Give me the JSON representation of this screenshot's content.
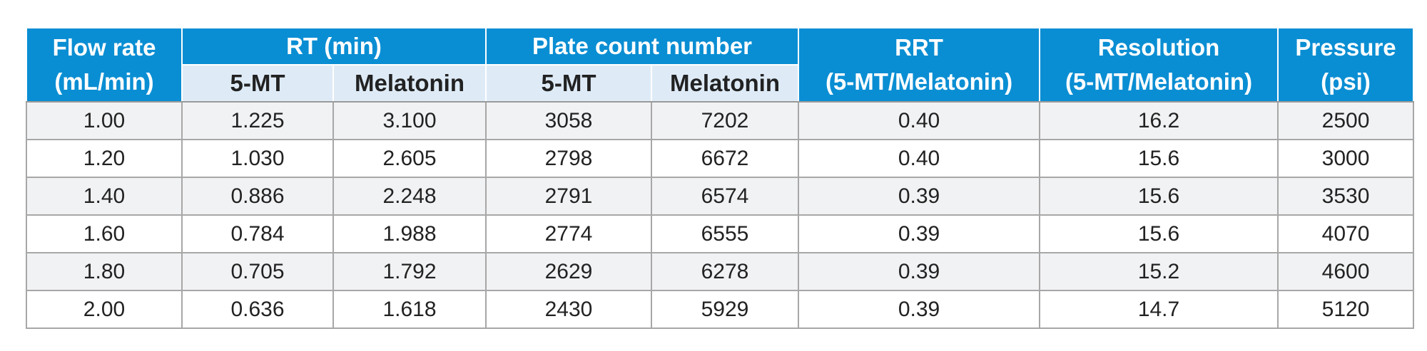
{
  "headers": {
    "flow_rate": [
      "Flow rate",
      "(mL/min)"
    ],
    "rt": "RT (min)",
    "plate_count": "Plate count number",
    "rrt": [
      "RRT",
      "(5-MT/Melatonin)"
    ],
    "resolution": [
      "Resolution",
      "(5-MT/Melatonin)"
    ],
    "pressure": [
      "Pressure",
      "(psi)"
    ],
    "sub": [
      "5-MT",
      "Melatonin",
      "5-MT",
      "Melatonin"
    ]
  },
  "rows": [
    [
      "1.00",
      "1.225",
      "3.100",
      "3058",
      "7202",
      "0.40",
      "16.2",
      "2500"
    ],
    [
      "1.20",
      "1.030",
      "2.605",
      "2798",
      "6672",
      "0.40",
      "15.6",
      "3000"
    ],
    [
      "1.40",
      "0.886",
      "2.248",
      "2791",
      "6574",
      "0.39",
      "15.6",
      "3530"
    ],
    [
      "1.60",
      "0.784",
      "1.988",
      "2774",
      "6555",
      "0.39",
      "15.6",
      "4070"
    ],
    [
      "1.80",
      "0.705",
      "1.792",
      "2629",
      "6278",
      "0.39",
      "15.2",
      "4600"
    ],
    [
      "2.00",
      "0.636",
      "1.618",
      "2430",
      "5929",
      "0.39",
      "14.7",
      "5120"
    ]
  ],
  "colors": {
    "header_blue": "#0a8ed3",
    "subheader_light": "#deebf7",
    "row_shade": "#f1f2f4"
  }
}
